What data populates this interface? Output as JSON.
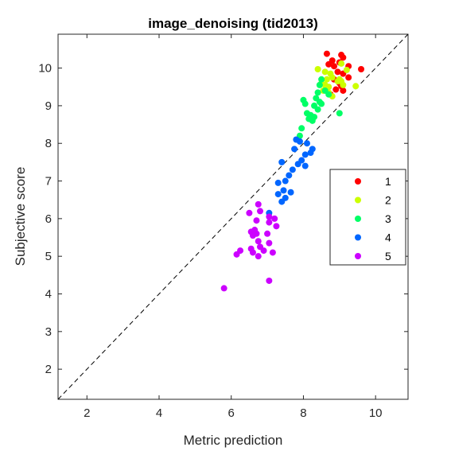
{
  "chart_data": {
    "type": "scatter",
    "title": "image_denoising (tid2013)",
    "xlabel": "Metric prediction",
    "ylabel": "Subjective score",
    "xlim": [
      1.2,
      10.9
    ],
    "ylim": [
      1.2,
      10.9
    ],
    "xticks": [
      2,
      4,
      6,
      8,
      10
    ],
    "yticks": [
      2,
      3,
      4,
      5,
      6,
      7,
      8,
      9,
      10
    ],
    "grid": false,
    "reference_line": {
      "style": "dashed",
      "color": "#000000",
      "from": [
        1.2,
        1.2
      ],
      "to": [
        10.9,
        10.9
      ]
    },
    "legend": {
      "placement": "right",
      "entries": [
        "1",
        "2",
        "3",
        "4",
        "5"
      ]
    },
    "series": [
      {
        "name": "1",
        "color": "#ff0000",
        "points": [
          [
            8.65,
            10.38
          ],
          [
            8.8,
            10.2
          ],
          [
            9.05,
            10.35
          ],
          [
            9.1,
            10.28
          ],
          [
            8.7,
            10.1
          ],
          [
            8.85,
            10.05
          ],
          [
            9.0,
            10.15
          ],
          [
            9.25,
            10.05
          ],
          [
            9.6,
            9.97
          ],
          [
            8.95,
            9.9
          ],
          [
            9.1,
            9.85
          ],
          [
            9.25,
            9.75
          ],
          [
            8.85,
            9.7
          ],
          [
            9.0,
            9.6
          ],
          [
            9.05,
            9.52
          ],
          [
            8.9,
            9.43
          ],
          [
            9.1,
            9.4
          ],
          [
            8.75,
            9.3
          ]
        ]
      },
      {
        "name": "2",
        "color": "#ccff00",
        "points": [
          [
            8.4,
            9.97
          ],
          [
            8.6,
            9.9
          ],
          [
            8.75,
            9.85
          ],
          [
            9.05,
            10.12
          ],
          [
            9.2,
            9.95
          ],
          [
            8.65,
            9.7
          ],
          [
            8.8,
            9.75
          ],
          [
            8.95,
            9.65
          ],
          [
            8.5,
            9.6
          ],
          [
            8.6,
            9.55
          ],
          [
            8.7,
            9.5
          ],
          [
            9.05,
            9.65
          ],
          [
            9.1,
            9.55
          ],
          [
            9.45,
            9.52
          ],
          [
            8.7,
            9.35
          ],
          [
            8.8,
            9.25
          ],
          [
            8.55,
            9.4
          ],
          [
            9.0,
            9.7
          ]
        ]
      },
      {
        "name": "3",
        "color": "#00ff66",
        "points": [
          [
            8.5,
            9.7
          ],
          [
            8.45,
            9.55
          ],
          [
            8.4,
            9.35
          ],
          [
            8.6,
            9.4
          ],
          [
            8.35,
            9.2
          ],
          [
            8.45,
            9.1
          ],
          [
            8.3,
            9.0
          ],
          [
            8.5,
            9.05
          ],
          [
            8.0,
            9.15
          ],
          [
            8.05,
            9.05
          ],
          [
            8.1,
            8.8
          ],
          [
            8.2,
            8.75
          ],
          [
            8.3,
            8.7
          ],
          [
            8.15,
            8.65
          ],
          [
            8.25,
            8.6
          ],
          [
            8.4,
            8.9
          ],
          [
            9.0,
            8.8
          ],
          [
            7.95,
            8.4
          ],
          [
            7.9,
            8.2
          ],
          [
            8.7,
            9.3
          ]
        ]
      },
      {
        "name": "4",
        "color": "#0066ff",
        "points": [
          [
            7.8,
            8.1
          ],
          [
            7.9,
            8.05
          ],
          [
            8.1,
            8.0
          ],
          [
            8.25,
            7.85
          ],
          [
            7.75,
            7.85
          ],
          [
            8.05,
            7.7
          ],
          [
            8.2,
            7.75
          ],
          [
            7.95,
            7.55
          ],
          [
            7.85,
            7.45
          ],
          [
            8.05,
            7.4
          ],
          [
            7.4,
            7.5
          ],
          [
            7.7,
            7.3
          ],
          [
            7.6,
            7.15
          ],
          [
            7.5,
            7.0
          ],
          [
            7.3,
            6.95
          ],
          [
            7.45,
            6.75
          ],
          [
            7.65,
            6.7
          ],
          [
            7.3,
            6.65
          ],
          [
            7.5,
            6.55
          ],
          [
            7.4,
            6.45
          ],
          [
            7.05,
            6.15
          ]
        ]
      },
      {
        "name": "5",
        "color": "#cc00ff",
        "points": [
          [
            6.75,
            6.38
          ],
          [
            6.5,
            6.15
          ],
          [
            6.8,
            6.2
          ],
          [
            7.05,
            6.05
          ],
          [
            7.2,
            6.0
          ],
          [
            6.7,
            5.95
          ],
          [
            7.05,
            5.9
          ],
          [
            7.25,
            5.8
          ],
          [
            6.65,
            5.7
          ],
          [
            6.55,
            5.65
          ],
          [
            6.7,
            5.6
          ],
          [
            6.6,
            5.55
          ],
          [
            7.0,
            5.6
          ],
          [
            6.75,
            5.4
          ],
          [
            7.05,
            5.35
          ],
          [
            6.55,
            5.2
          ],
          [
            6.8,
            5.25
          ],
          [
            6.9,
            5.15
          ],
          [
            7.15,
            5.1
          ],
          [
            6.6,
            5.1
          ],
          [
            6.25,
            5.15
          ],
          [
            6.15,
            5.05
          ],
          [
            6.75,
            5.0
          ],
          [
            7.05,
            4.35
          ],
          [
            5.8,
            4.15
          ]
        ]
      }
    ]
  }
}
